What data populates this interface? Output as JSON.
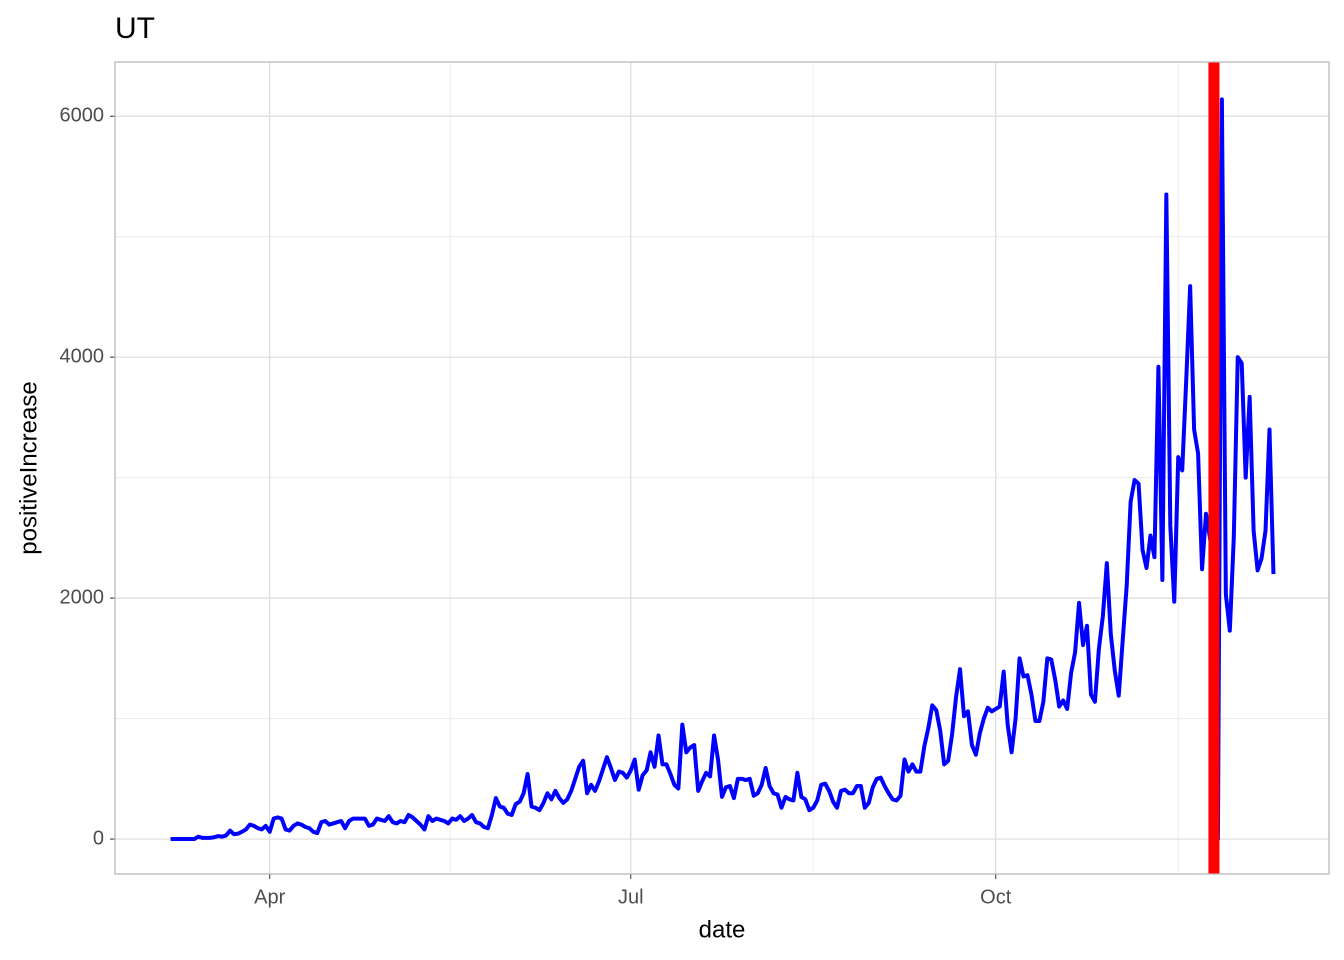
{
  "chart_data": {
    "type": "line",
    "title": "UT",
    "x_label": "date",
    "y_label": "positiveIncrease",
    "categories": [
      null,
      null,
      null,
      null,
      null,
      null,
      null,
      null,
      null,
      null,
      null,
      null,
      null,
      null,
      null,
      null,
      null,
      null,
      null,
      null,
      null,
      null,
      null,
      null,
      null,
      "Apr",
      null,
      null,
      null,
      null,
      null,
      null,
      null,
      null,
      null,
      null,
      null,
      null,
      null,
      null,
      null,
      null,
      null,
      null,
      null,
      null,
      null,
      null,
      null,
      null,
      null,
      null,
      null,
      null,
      null,
      null,
      null,
      null,
      null,
      null,
      null,
      null,
      null,
      null,
      null,
      null,
      null,
      null,
      null,
      null,
      null,
      null,
      null,
      null,
      null,
      null,
      null,
      null,
      null,
      null,
      null,
      null,
      null,
      null,
      null,
      null,
      null,
      null,
      null,
      null,
      null,
      null,
      null,
      null,
      null,
      null,
      null,
      null,
      null,
      null,
      null,
      null,
      null,
      null,
      null,
      null,
      null,
      null,
      null,
      null,
      null,
      null,
      null,
      null,
      null,
      null,
      "Jul",
      null,
      null,
      null,
      null,
      null,
      null,
      null,
      null,
      null,
      null,
      null,
      null,
      null,
      null,
      null,
      null,
      null,
      null,
      null,
      null,
      null,
      null,
      null,
      null,
      null,
      null,
      null,
      null,
      null,
      null,
      null,
      null,
      null,
      null,
      null,
      null,
      null,
      null,
      null,
      null,
      null,
      null,
      null,
      null,
      null,
      null,
      null,
      null,
      null,
      null,
      null,
      null,
      null,
      null,
      null,
      null,
      null,
      null,
      null,
      null,
      null,
      null,
      null,
      null,
      null,
      null,
      null,
      null,
      null,
      null,
      null,
      null,
      null,
      null,
      null,
      null,
      null,
      null,
      null,
      null,
      null,
      null,
      null,
      null,
      null,
      null,
      null,
      null,
      null,
      null,
      null,
      "Oct",
      null,
      null,
      null,
      null,
      null,
      null,
      null,
      null,
      null,
      null,
      null,
      null,
      null,
      null,
      null,
      null,
      null,
      null,
      null,
      null,
      null,
      null,
      null,
      null,
      null,
      null,
      null,
      null,
      null,
      null,
      null,
      null,
      null,
      null,
      null,
      null,
      null,
      null,
      null,
      null,
      null,
      null,
      null,
      null,
      null,
      null,
      null,
      null,
      null,
      null,
      null,
      null,
      null,
      null,
      null,
      null,
      null,
      null,
      null,
      null,
      null,
      null,
      null,
      null,
      null,
      null,
      null,
      null,
      null,
      null
    ],
    "values": [
      0,
      0,
      0,
      0,
      0,
      0,
      0,
      20,
      10,
      10,
      10,
      15,
      25,
      20,
      30,
      70,
      40,
      45,
      60,
      80,
      120,
      110,
      90,
      80,
      110,
      60,
      170,
      180,
      170,
      80,
      70,
      110,
      130,
      120,
      100,
      90,
      60,
      50,
      140,
      150,
      120,
      130,
      140,
      150,
      90,
      150,
      170,
      170,
      170,
      170,
      110,
      120,
      170,
      160,
      150,
      190,
      140,
      130,
      150,
      140,
      200,
      180,
      150,
      120,
      80,
      190,
      150,
      170,
      160,
      150,
      130,
      170,
      160,
      190,
      150,
      170,
      200,
      140,
      130,
      100,
      90,
      200,
      340,
      270,
      260,
      210,
      200,
      290,
      310,
      380,
      540,
      270,
      260,
      240,
      300,
      380,
      330,
      400,
      340,
      300,
      330,
      400,
      500,
      600,
      650,
      380,
      450,
      400,
      480,
      580,
      680,
      590,
      490,
      560,
      550,
      510,
      570,
      660,
      410,
      530,
      570,
      720,
      600,
      860,
      620,
      620,
      540,
      450,
      420,
      950,
      720,
      760,
      780,
      400,
      480,
      550,
      520,
      860,
      660,
      350,
      430,
      440,
      340,
      500,
      500,
      490,
      500,
      360,
      380,
      450,
      590,
      440,
      380,
      370,
      260,
      350,
      330,
      320,
      550,
      350,
      330,
      240,
      260,
      320,
      450,
      460,
      400,
      310,
      260,
      400,
      410,
      380,
      380,
      440,
      440,
      260,
      300,
      430,
      500,
      510,
      440,
      380,
      330,
      320,
      360,
      660,
      560,
      620,
      560,
      560,
      770,
      920,
      1110,
      1070,
      900,
      620,
      650,
      870,
      1180,
      1410,
      1020,
      1060,
      780,
      700,
      880,
      1000,
      1090,
      1060,
      1080,
      1100,
      1390,
      950,
      720,
      1000,
      1500,
      1350,
      1360,
      1200,
      980,
      980,
      1140,
      1500,
      1490,
      1320,
      1100,
      1150,
      1080,
      1380,
      1550,
      1960,
      1610,
      1770,
      1200,
      1140,
      1580,
      1850,
      2290,
      1700,
      1400,
      1190,
      1650,
      2100,
      2800,
      2980,
      2950,
      2400,
      2250,
      2520,
      2340,
      3920,
      2150,
      5350,
      2600,
      1970,
      3170,
      3060,
      3800,
      4590,
      3400,
      3200,
      2240,
      2700,
      2500,
      2300,
      0,
      6140,
      2030,
      1730,
      2500,
      4000,
      3950,
      3000,
      3670,
      2560,
      2230,
      2330,
      2560,
      3400,
      2200
    ],
    "color": "#0000ff",
    "vline": {
      "category": 263,
      "color": "#ff0000"
    },
    "ylim": [
      -290,
      6450
    ],
    "yticks": [
      0,
      2000,
      4000,
      6000
    ],
    "minor_yticks": [
      1000,
      3000,
      5000
    ],
    "grid": true
  }
}
